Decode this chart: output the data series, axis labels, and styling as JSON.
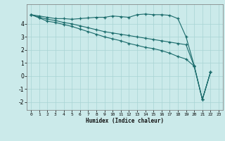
{
  "title": "",
  "xlabel": "Humidex (Indice chaleur)",
  "background_color": "#cbeaea",
  "grid_color": "#a8d4d4",
  "line_color": "#1a6b6b",
  "xlim": [
    -0.5,
    23.5
  ],
  "ylim": [
    -2.6,
    5.5
  ],
  "yticks": [
    -2,
    -1,
    0,
    1,
    2,
    3,
    4
  ],
  "xticks": [
    0,
    1,
    2,
    3,
    4,
    5,
    6,
    7,
    8,
    9,
    10,
    11,
    12,
    13,
    14,
    15,
    16,
    17,
    18,
    19,
    20,
    21,
    22,
    23
  ],
  "series": [
    {
      "x": [
        0,
        1,
        2,
        3,
        4,
        5,
        6,
        7,
        8,
        9,
        10,
        11,
        12,
        13,
        14,
        15,
        16,
        17,
        18,
        19,
        20,
        21,
        22
      ],
      "y": [
        4.7,
        4.6,
        4.5,
        4.4,
        4.4,
        4.35,
        4.4,
        4.45,
        4.5,
        4.5,
        4.6,
        4.55,
        4.5,
        4.7,
        4.75,
        4.7,
        4.7,
        4.65,
        4.4,
        3.0,
        0.8,
        -1.8,
        0.3
      ]
    },
    {
      "x": [
        0,
        1,
        2,
        3,
        4,
        5,
        6,
        7,
        8,
        9,
        10,
        11,
        12,
        13,
        14,
        15,
        16,
        17,
        18,
        19,
        20,
        21,
        22
      ],
      "y": [
        4.7,
        4.5,
        4.35,
        4.25,
        4.1,
        4.0,
        3.85,
        3.7,
        3.55,
        3.4,
        3.3,
        3.2,
        3.1,
        3.0,
        2.9,
        2.8,
        2.7,
        2.6,
        2.5,
        2.4,
        0.75,
        -1.8,
        0.3
      ]
    },
    {
      "x": [
        0,
        1,
        2,
        3,
        4,
        5,
        6,
        7,
        8,
        9,
        10,
        11,
        12,
        13,
        14,
        15,
        16,
        17,
        18,
        19,
        20,
        21,
        22
      ],
      "y": [
        4.7,
        4.45,
        4.2,
        4.1,
        3.95,
        3.8,
        3.6,
        3.4,
        3.2,
        3.0,
        2.85,
        2.7,
        2.5,
        2.35,
        2.2,
        2.1,
        1.95,
        1.75,
        1.5,
        1.3,
        0.75,
        -1.8,
        0.3
      ]
    }
  ]
}
